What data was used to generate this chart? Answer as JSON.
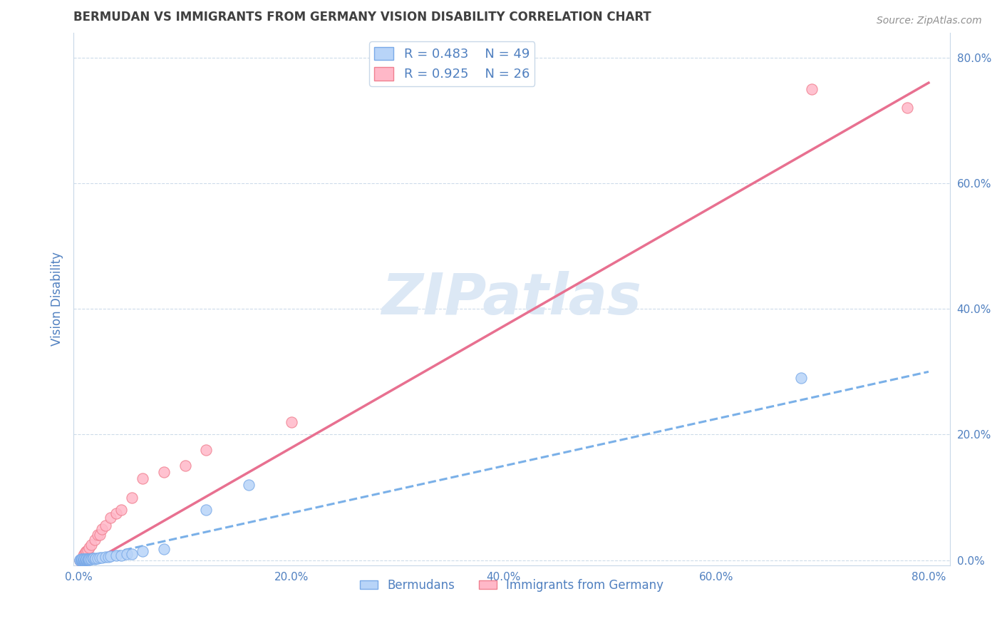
{
  "title": "BERMUDAN VS IMMIGRANTS FROM GERMANY VISION DISABILITY CORRELATION CHART",
  "source": "Source: ZipAtlas.com",
  "ylabel": "Vision Disability",
  "series1_name": "Bermudans",
  "series1_R": 0.483,
  "series1_N": 49,
  "series1_color": "#b8d4f8",
  "series1_edge": "#7aaae8",
  "series2_name": "Immigrants from Germany",
  "series2_R": 0.925,
  "series2_N": 26,
  "series2_color": "#ffb8c8",
  "series2_edge": "#f08090",
  "trend1_color": "#7ab0e8",
  "trend2_color": "#e87090",
  "watermark_text": "ZIPatlas",
  "watermark_color": "#dce8f5",
  "bg_color": "#ffffff",
  "grid_color": "#c8d8e8",
  "axis_color": "#5080c0",
  "title_color": "#404040",
  "xlim": [
    -0.005,
    0.82
  ],
  "ylim": [
    -0.008,
    0.84
  ],
  "xticks": [
    0.0,
    0.2,
    0.4,
    0.6,
    0.8
  ],
  "yticks": [
    0.0,
    0.2,
    0.4,
    0.6,
    0.8
  ],
  "bermudans_x": [
    0.001,
    0.001,
    0.002,
    0.002,
    0.002,
    0.003,
    0.003,
    0.003,
    0.003,
    0.004,
    0.004,
    0.004,
    0.005,
    0.005,
    0.005,
    0.005,
    0.006,
    0.006,
    0.006,
    0.007,
    0.007,
    0.007,
    0.008,
    0.008,
    0.009,
    0.009,
    0.01,
    0.01,
    0.011,
    0.012,
    0.013,
    0.014,
    0.015,
    0.016,
    0.018,
    0.02,
    0.022,
    0.025,
    0.028,
    0.03,
    0.035,
    0.04,
    0.045,
    0.05,
    0.06,
    0.08,
    0.12,
    0.16,
    0.68
  ],
  "bermudans_y": [
    0.0,
    0.001,
    0.0,
    0.001,
    0.002,
    0.0,
    0.001,
    0.001,
    0.002,
    0.001,
    0.001,
    0.002,
    0.0,
    0.001,
    0.001,
    0.002,
    0.001,
    0.001,
    0.002,
    0.001,
    0.002,
    0.002,
    0.001,
    0.002,
    0.001,
    0.002,
    0.001,
    0.002,
    0.002,
    0.002,
    0.003,
    0.003,
    0.002,
    0.003,
    0.003,
    0.004,
    0.004,
    0.005,
    0.005,
    0.006,
    0.007,
    0.008,
    0.01,
    0.01,
    0.014,
    0.018,
    0.08,
    0.12,
    0.29
  ],
  "germany_scatter_x": [
    0.001,
    0.002,
    0.003,
    0.004,
    0.005,
    0.006,
    0.007,
    0.008,
    0.01,
    0.012,
    0.015,
    0.018,
    0.02,
    0.022,
    0.025,
    0.03,
    0.035,
    0.04,
    0.05,
    0.06,
    0.08,
    0.1,
    0.12,
    0.2,
    0.69,
    0.78
  ],
  "germany_scatter_y": [
    0.0,
    0.001,
    0.003,
    0.008,
    0.01,
    0.013,
    0.014,
    0.015,
    0.02,
    0.025,
    0.032,
    0.04,
    0.04,
    0.05,
    0.055,
    0.068,
    0.075,
    0.08,
    0.1,
    0.13,
    0.14,
    0.15,
    0.175,
    0.22,
    0.75,
    0.72
  ],
  "trend1_x_start": 0.0,
  "trend1_x_end": 0.8,
  "trend1_y_start": 0.0,
  "trend1_y_end": 0.3,
  "trend2_x_start": 0.0,
  "trend2_x_end": 0.8,
  "trend2_y_start": -0.015,
  "trend2_y_end": 0.76
}
